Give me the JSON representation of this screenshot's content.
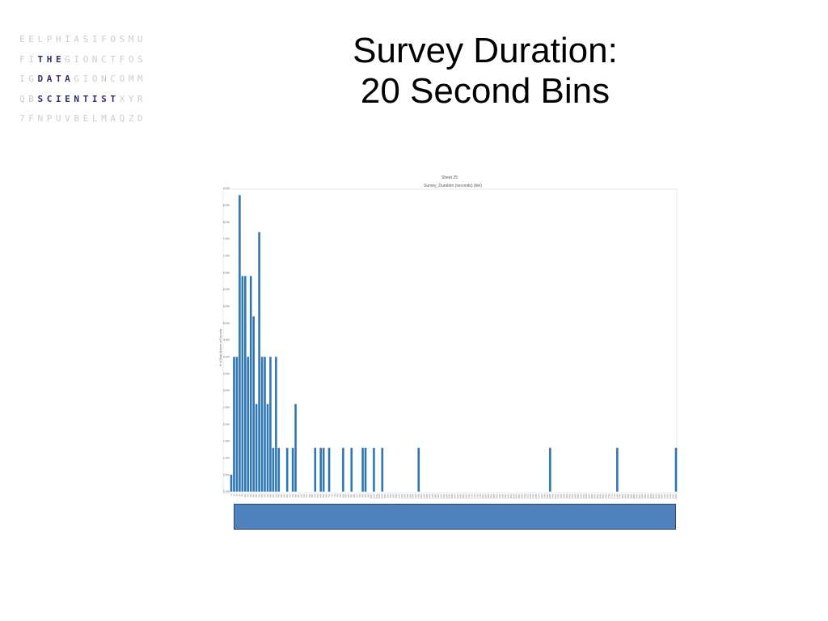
{
  "logo": {
    "rows": [
      "EELPHIASIFOSMU",
      "FITHEGIONCTFOS",
      "IGDATAGIONCOMM",
      "QBSCIENTISTXYR",
      "7FNPUVBELMAQZD"
    ],
    "highlights": [
      [],
      [
        2,
        3,
        4
      ],
      [
        2,
        3,
        4,
        5
      ],
      [
        2,
        3,
        4,
        5,
        6,
        7,
        8,
        9,
        10
      ],
      []
    ],
    "colors": {
      "letters": "#c9ccd6",
      "highlight": "#2c2f6e"
    }
  },
  "title": {
    "line1": "Survey Duration:",
    "line2": "20 Second Bins"
  },
  "chart_data": {
    "type": "bar",
    "title": "Sheet 25",
    "subtitle": "Survey_Duration (seconds) (bin)",
    "ylabel": "% of Total Number of Records",
    "ylim": [
      0,
      9
    ],
    "ytick_labels": [
      "0.0%",
      "0.5%",
      "1.0%",
      "1.5%",
      "2.0%",
      "2.5%",
      "3.0%",
      "3.5%",
      "4.0%",
      "4.5%",
      "5.0%",
      "5.5%",
      "6.0%",
      "6.5%",
      "7.0%",
      "7.5%",
      "8.0%",
      "8.5%",
      "9.0%"
    ],
    "bar_color": "#2f76b5",
    "grid": false,
    "values": [
      0.5,
      4.0,
      4.0,
      8.8,
      6.4,
      6.4,
      4.0,
      6.4,
      5.2,
      2.6,
      7.7,
      4.0,
      4.0,
      2.6,
      4.0,
      1.3,
      4.0,
      1.3,
      0,
      0,
      1.3,
      0,
      1.3,
      2.6,
      0,
      0,
      0,
      0,
      0,
      0,
      1.3,
      0,
      1.3,
      1.3,
      0,
      1.3,
      0,
      0,
      0,
      0,
      1.3,
      0,
      0,
      1.3,
      0,
      0,
      0,
      1.3,
      1.3,
      0,
      0,
      1.3,
      0,
      0,
      1.3,
      0,
      0,
      0,
      0,
      0,
      0,
      0,
      0,
      0,
      0,
      0,
      0,
      1.3,
      0,
      0,
      0,
      0,
      0,
      0,
      0,
      0,
      0,
      0,
      0,
      0,
      0,
      0,
      0,
      0,
      0,
      0,
      0,
      0,
      0,
      0,
      0,
      0,
      0,
      0,
      0,
      0,
      0,
      0,
      0,
      0,
      0,
      0,
      0,
      0,
      0,
      0,
      0,
      0,
      0,
      0,
      0,
      0,
      0,
      0,
      1.3,
      0,
      0,
      0,
      0,
      0,
      0,
      0,
      0,
      0,
      0,
      0,
      0,
      0,
      0,
      0,
      0,
      0,
      0,
      0,
      0,
      0,
      0,
      0,
      1.3,
      0,
      0,
      0,
      0,
      0,
      0,
      0,
      0,
      0,
      0,
      0,
      0,
      0,
      0,
      0,
      0,
      0,
      0,
      0,
      0,
      1.3
    ]
  },
  "footer_box": {
    "color": "#4f81bd",
    "border": "#27466b"
  }
}
